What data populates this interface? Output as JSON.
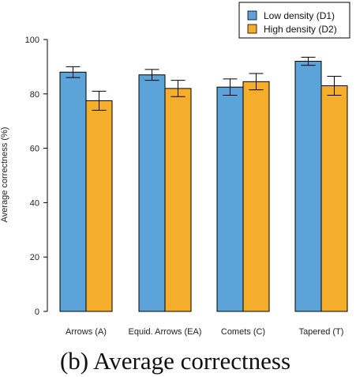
{
  "chart_data": {
    "type": "bar",
    "caption": "(b)  Average correctness",
    "ylabel": "Average correctness (%)",
    "xlabel": "",
    "ylim": [
      0,
      100
    ],
    "yticks": [
      0,
      20,
      40,
      60,
      80,
      100
    ],
    "categories": [
      "Arrows (A)",
      "Equid. Arrows (EA)",
      "Comets (C)",
      "Tapered (T)"
    ],
    "series": [
      {
        "name": "Low density  (D1)",
        "color": "#5ba3d9",
        "values": [
          88,
          87,
          82.5,
          92
        ],
        "error": [
          2,
          2,
          3,
          1.5
        ]
      },
      {
        "name": "High density (D2)",
        "color": "#f5ad2c",
        "values": [
          77.5,
          82,
          84.5,
          83
        ],
        "error": [
          3.5,
          3,
          3,
          3.5
        ]
      }
    ],
    "legend_position": "top-right",
    "grid": false
  }
}
